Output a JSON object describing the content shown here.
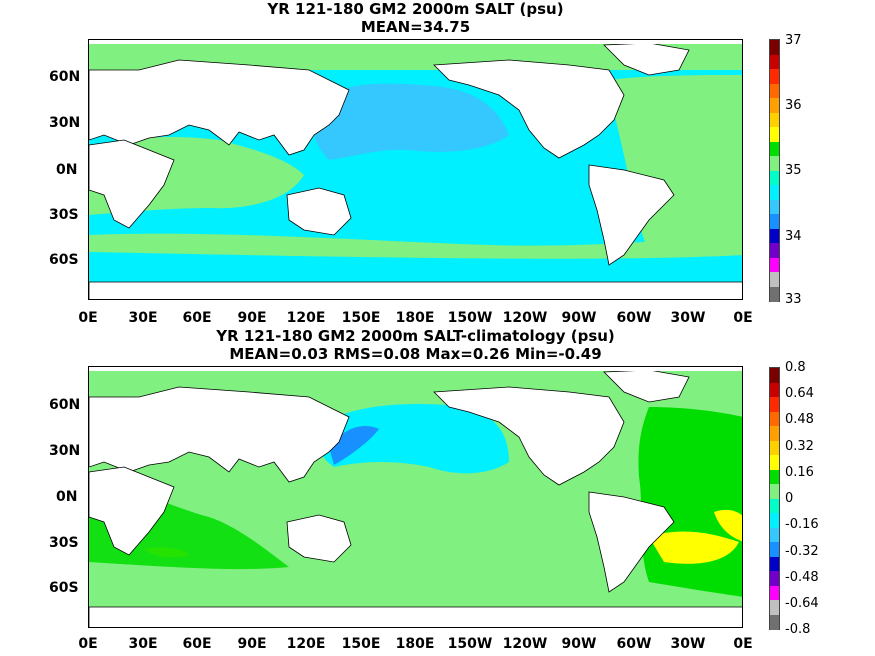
{
  "panels": [
    {
      "title1": "YR 121-180 GM2 2000m SALT (psu)",
      "title2": "MEAN=34.75"
    },
    {
      "title1": "YR 121-180 GM2 2000m SALT-climatology (psu)",
      "title2": "MEAN=0.03   RMS=0.08   Max=0.26   Min=-0.49"
    }
  ],
  "axes": {
    "lat_labels": [
      "60N",
      "30N",
      "0N",
      "30S",
      "60S"
    ],
    "lon_labels": [
      "0E",
      "30E",
      "60E",
      "90E",
      "120E",
      "150E",
      "180E",
      "150W",
      "120W",
      "90W",
      "60W",
      "30W",
      "0E"
    ]
  },
  "colorbar_top": {
    "labels": [
      "37",
      "36",
      "35",
      "34",
      "33"
    ],
    "colors": [
      "#7a0000",
      "#c80000",
      "#ff2a00",
      "#ff6a00",
      "#ff9f00",
      "#ffd000",
      "#ffff00",
      "#00dd00",
      "#80f080",
      "#00ffc8",
      "#00f0ff",
      "#35c8ff",
      "#1890ff",
      "#0000c8",
      "#7000c8",
      "#ff00ff",
      "#c0c0c0",
      "#707070"
    ]
  },
  "colorbar_bottom": {
    "labels": [
      "0.8",
      "0.64",
      "0.48",
      "0.32",
      "0.16",
      "0",
      "-0.16",
      "-0.32",
      "-0.48",
      "-0.64",
      "-0.8"
    ],
    "colors": [
      "#7a0000",
      "#c80000",
      "#ff2a00",
      "#ff6a00",
      "#ff9f00",
      "#ffd000",
      "#ffff00",
      "#00dd00",
      "#80f080",
      "#00ffc8",
      "#00f0ff",
      "#35c8ff",
      "#1890ff",
      "#0000c8",
      "#7000c8",
      "#ff00ff",
      "#c0c0c0",
      "#707070"
    ]
  },
  "colors": {
    "land": "#ffffff",
    "top_ocean": "#00f0ff",
    "top_atlantic": "#80f080",
    "top_north_pacific": "#35c8ff",
    "top_south_band": "#80f080",
    "bottom_ocean": "#80f080",
    "bottom_north_pacific": "#00f0ff",
    "bottom_kuroshio": "#1890ff",
    "bottom_atlantic_green": "#00dd00",
    "bottom_yellow": "#ffff00"
  }
}
